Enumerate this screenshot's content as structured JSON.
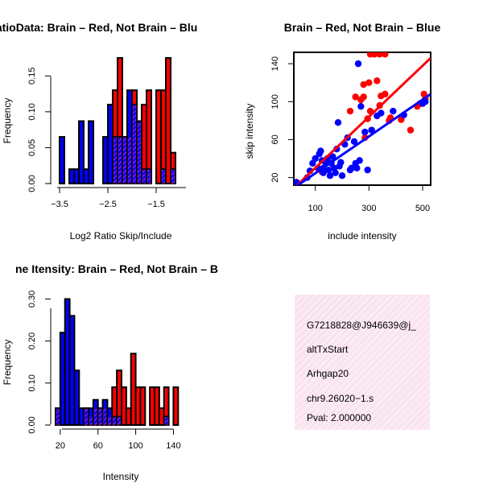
{
  "colors": {
    "brain": "#ff0000",
    "not_brain": "#0000ff",
    "overlap_fill": "#9b1fb0",
    "overlap_hatch": "#cc33cc",
    "info_panel": "#f7dcec",
    "pval": "#cc0000"
  },
  "chart_data": [
    {
      "type": "histogram",
      "title": "RatioData: Brain – Red, Not Brain – Blu",
      "xlabel": "Log2 Ratio Skip/Include",
      "ylabel": "Frequency",
      "xlim": [
        -3.6,
        -0.8
      ],
      "ylim": [
        0,
        0.175
      ],
      "xticks": [
        -3.5,
        -2.5,
        -1.5
      ],
      "xtick_labels": [
        "−3.5",
        "−2.5",
        "−1.5"
      ],
      "yticks": [
        0.0,
        0.05,
        0.1,
        0.15
      ],
      "ytick_labels": [
        "0.00",
        "0.05",
        "0.10",
        "0.15"
      ],
      "bin_width": 0.1,
      "bin_starts": [
        -3.5,
        -3.4,
        -3.3,
        -3.2,
        -3.1,
        -3.0,
        -2.9,
        -2.8,
        -2.7,
        -2.6,
        -2.5,
        -2.4,
        -2.3,
        -2.2,
        -2.1,
        -2.0,
        -1.9,
        -1.8,
        -1.7,
        -1.6,
        -1.5,
        -1.4,
        -1.3,
        -1.2,
        -1.1,
        -1.0
      ],
      "series": [
        {
          "name": "Brain",
          "values": [
            0,
            0,
            0,
            0,
            0,
            0,
            0,
            0,
            0,
            0,
            0,
            0.13,
            0.175,
            0.065,
            0.065,
            0.13,
            0.085,
            0.11,
            0.13,
            0,
            0.13,
            0.13,
            0.175,
            0.043,
            0,
            0
          ]
        },
        {
          "name": "Not Brain",
          "values": [
            0.065,
            0,
            0.02,
            0.02,
            0.087,
            0.02,
            0.087,
            0,
            0,
            0.065,
            0.11,
            0.065,
            0.065,
            0.065,
            0.13,
            0.11,
            0.087,
            0.02,
            0.02,
            0,
            0,
            0.02,
            0,
            0.02,
            0,
            0
          ]
        }
      ]
    },
    {
      "type": "scatter",
      "title": "Brain – Red, Not Brain – Blue",
      "xlabel": "include intensity",
      "ylabel": "skip intensity",
      "xlim": [
        20,
        530
      ],
      "ylim": [
        12,
        152
      ],
      "xticks": [
        100,
        300,
        500
      ],
      "xtick_labels": [
        "100",
        "300",
        "500"
      ],
      "yticks": [
        20,
        60,
        100,
        140
      ],
      "ytick_labels": [
        "20",
        "60",
        "100",
        "140"
      ],
      "series": [
        {
          "name": "Brain",
          "points": [
            [
              30,
              15
            ],
            [
              125,
              26
            ],
            [
              305,
              150
            ],
            [
              320,
              150
            ],
            [
              340,
              150
            ],
            [
              360,
              150
            ],
            [
              300,
              120
            ],
            [
              330,
              122
            ],
            [
              280,
              118
            ],
            [
              345,
              106
            ],
            [
              250,
              105
            ],
            [
              270,
              102
            ],
            [
              305,
              90
            ],
            [
              295,
              82
            ],
            [
              230,
              90
            ],
            [
              340,
              96
            ],
            [
              375,
              80
            ],
            [
              380,
              83
            ],
            [
              310,
              70
            ],
            [
              285,
              62
            ],
            [
              420,
              81
            ],
            [
              455,
              70
            ],
            [
              480,
              95
            ],
            [
              490,
              98
            ],
            [
              505,
              108
            ],
            [
              510,
              103
            ],
            [
              280,
              105
            ],
            [
              360,
              108
            ]
          ],
          "trend": [
            [
              25,
              10
            ],
            [
              530,
              146
            ]
          ]
        },
        {
          "name": "Not Brain",
          "points": [
            [
              30,
              15
            ],
            [
              70,
              20
            ],
            [
              80,
              27
            ],
            [
              90,
              35
            ],
            [
              100,
              40
            ],
            [
              110,
              30
            ],
            [
              115,
              45
            ],
            [
              120,
              48
            ],
            [
              125,
              38
            ],
            [
              130,
              25
            ],
            [
              130,
              30
            ],
            [
              140,
              35
            ],
            [
              145,
              40
            ],
            [
              150,
              28
            ],
            [
              155,
              22
            ],
            [
              160,
              35
            ],
            [
              165,
              42
            ],
            [
              170,
              30
            ],
            [
              175,
              25
            ],
            [
              180,
              50
            ],
            [
              185,
              78
            ],
            [
              190,
              32
            ],
            [
              195,
              36
            ],
            [
              200,
              22
            ],
            [
              210,
              55
            ],
            [
              220,
              62
            ],
            [
              230,
              28
            ],
            [
              235,
              30
            ],
            [
              245,
              58
            ],
            [
              250,
              35
            ],
            [
              255,
              30
            ],
            [
              260,
              140
            ],
            [
              265,
              38
            ],
            [
              270,
              95
            ],
            [
              285,
              68
            ],
            [
              295,
              28
            ],
            [
              310,
              70
            ],
            [
              330,
              85
            ],
            [
              345,
              88
            ],
            [
              390,
              90
            ],
            [
              430,
              86
            ],
            [
              500,
              98
            ],
            [
              510,
              100
            ]
          ],
          "trend": [
            [
              25,
              10
            ],
            [
              530,
              108
            ]
          ]
        }
      ]
    },
    {
      "type": "histogram",
      "title": "ne Itensity: Brain – Red, Not Brain – B",
      "xlabel": "Intensity",
      "ylabel": "Frequency",
      "xlim": [
        15,
        155
      ],
      "ylim": [
        0,
        0.32
      ],
      "xticks": [
        20,
        60,
        100,
        140
      ],
      "xtick_labels": [
        "20",
        "60",
        "100",
        "140"
      ],
      "yticks": [
        0.0,
        0.1,
        0.2,
        0.3
      ],
      "ytick_labels": [
        "0.00",
        "0.10",
        "0.20",
        "0.30"
      ],
      "bin_width": 5,
      "bin_starts": [
        15,
        20,
        25,
        30,
        35,
        40,
        45,
        50,
        55,
        60,
        65,
        70,
        75,
        80,
        85,
        90,
        95,
        100,
        105,
        110,
        115,
        120,
        125,
        130,
        135,
        140,
        145
      ],
      "series": [
        {
          "name": "Brain",
          "values": [
            0.04,
            0,
            0,
            0,
            0,
            0,
            0.04,
            0.02,
            0.04,
            0.04,
            0.04,
            0.02,
            0.09,
            0.13,
            0.09,
            0.04,
            0.17,
            0.09,
            0.09,
            0,
            0.09,
            0.09,
            0.04,
            0.09,
            0,
            0.09,
            0
          ]
        },
        {
          "name": "Not Brain",
          "values": [
            0.04,
            0.22,
            0.3,
            0.26,
            0.13,
            0.04,
            0.04,
            0.04,
            0.06,
            0.04,
            0.06,
            0.04,
            0.02,
            0.02,
            0,
            0,
            0,
            0,
            0,
            0,
            0,
            0,
            0,
            0.02,
            0,
            0,
            0
          ]
        }
      ]
    }
  ],
  "info": {
    "probe_id": "G7218828@J946639@j_",
    "event_type": "altTxStart",
    "gene": "Arhgap20",
    "location": "chr9.26020−1.s",
    "pval": "Pval: 2.000000"
  }
}
